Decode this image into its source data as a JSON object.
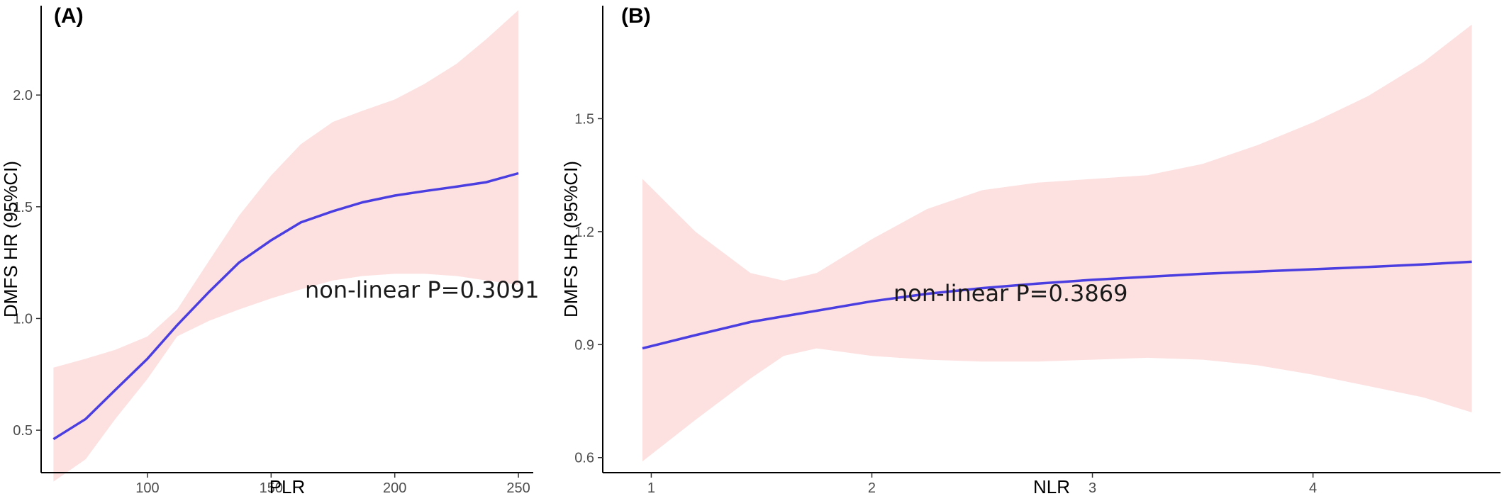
{
  "chart_data": [
    {
      "type": "line",
      "panel_label": "(A)",
      "xlabel": "PLR",
      "ylabel": "DMFS HR (95%CI)",
      "annotation": "non-linear P=0.3091",
      "xlim": [
        57,
        256
      ],
      "ylim": [
        0.31,
        2.4
      ],
      "x_ticks": [
        100,
        150,
        200,
        250
      ],
      "y_ticks": [
        0.5,
        1.0,
        1.5,
        2.0
      ],
      "x_tick_labels": [
        "100",
        "150",
        "200",
        "250"
      ],
      "y_tick_labels": [
        "0.5",
        "1.0",
        "1.5",
        "2.0"
      ],
      "colors": {
        "line": "#4b3ee0",
        "ci": "#fde1e1"
      },
      "series": [
        {
          "x": [
            62,
            75,
            87,
            100,
            112,
            125,
            137,
            150,
            162,
            175,
            187,
            200,
            212,
            225,
            237,
            250
          ],
          "y": [
            0.46,
            0.55,
            0.68,
            0.82,
            0.97,
            1.12,
            1.25,
            1.35,
            1.43,
            1.48,
            1.52,
            1.55,
            1.57,
            1.59,
            1.61,
            1.65
          ],
          "lower": [
            0.27,
            0.37,
            0.55,
            0.73,
            0.92,
            0.99,
            1.04,
            1.09,
            1.13,
            1.17,
            1.19,
            1.2,
            1.2,
            1.19,
            1.17,
            1.15
          ],
          "upper": [
            0.78,
            0.82,
            0.86,
            0.92,
            1.04,
            1.26,
            1.46,
            1.64,
            1.78,
            1.88,
            1.93,
            1.98,
            2.05,
            2.14,
            2.25,
            2.38
          ]
        }
      ]
    },
    {
      "type": "line",
      "panel_label": "(B)",
      "xlabel": "NLR",
      "ylabel": "DMFS HR (95%CI)",
      "annotation": "non-linear P=0.3869",
      "xlim": [
        0.78,
        4.85
      ],
      "ylim": [
        0.56,
        1.8
      ],
      "x_ticks": [
        1,
        2,
        3,
        4
      ],
      "y_ticks": [
        0.6,
        0.9,
        1.2,
        1.5
      ],
      "x_tick_labels": [
        "1",
        "2",
        "3",
        "4"
      ],
      "y_tick_labels": [
        "0.6",
        "0.9",
        "1.2",
        "1.5"
      ],
      "colors": {
        "line": "#4b3ee0",
        "ci": "#fde1e1"
      },
      "series": [
        {
          "x": [
            0.96,
            1.2,
            1.45,
            1.6,
            1.75,
            2.0,
            2.25,
            2.5,
            2.75,
            3.0,
            3.25,
            3.5,
            3.75,
            4.0,
            4.25,
            4.5,
            4.72
          ],
          "y": [
            0.89,
            0.925,
            0.96,
            0.975,
            0.99,
            1.015,
            1.035,
            1.05,
            1.062,
            1.072,
            1.08,
            1.088,
            1.094,
            1.1,
            1.106,
            1.113,
            1.12
          ],
          "lower": [
            0.59,
            0.7,
            0.81,
            0.87,
            0.89,
            0.87,
            0.86,
            0.855,
            0.855,
            0.86,
            0.865,
            0.86,
            0.845,
            0.82,
            0.79,
            0.76,
            0.72
          ],
          "upper": [
            1.34,
            1.2,
            1.09,
            1.07,
            1.09,
            1.18,
            1.26,
            1.31,
            1.33,
            1.34,
            1.35,
            1.38,
            1.43,
            1.49,
            1.56,
            1.65,
            1.75
          ]
        }
      ]
    }
  ]
}
